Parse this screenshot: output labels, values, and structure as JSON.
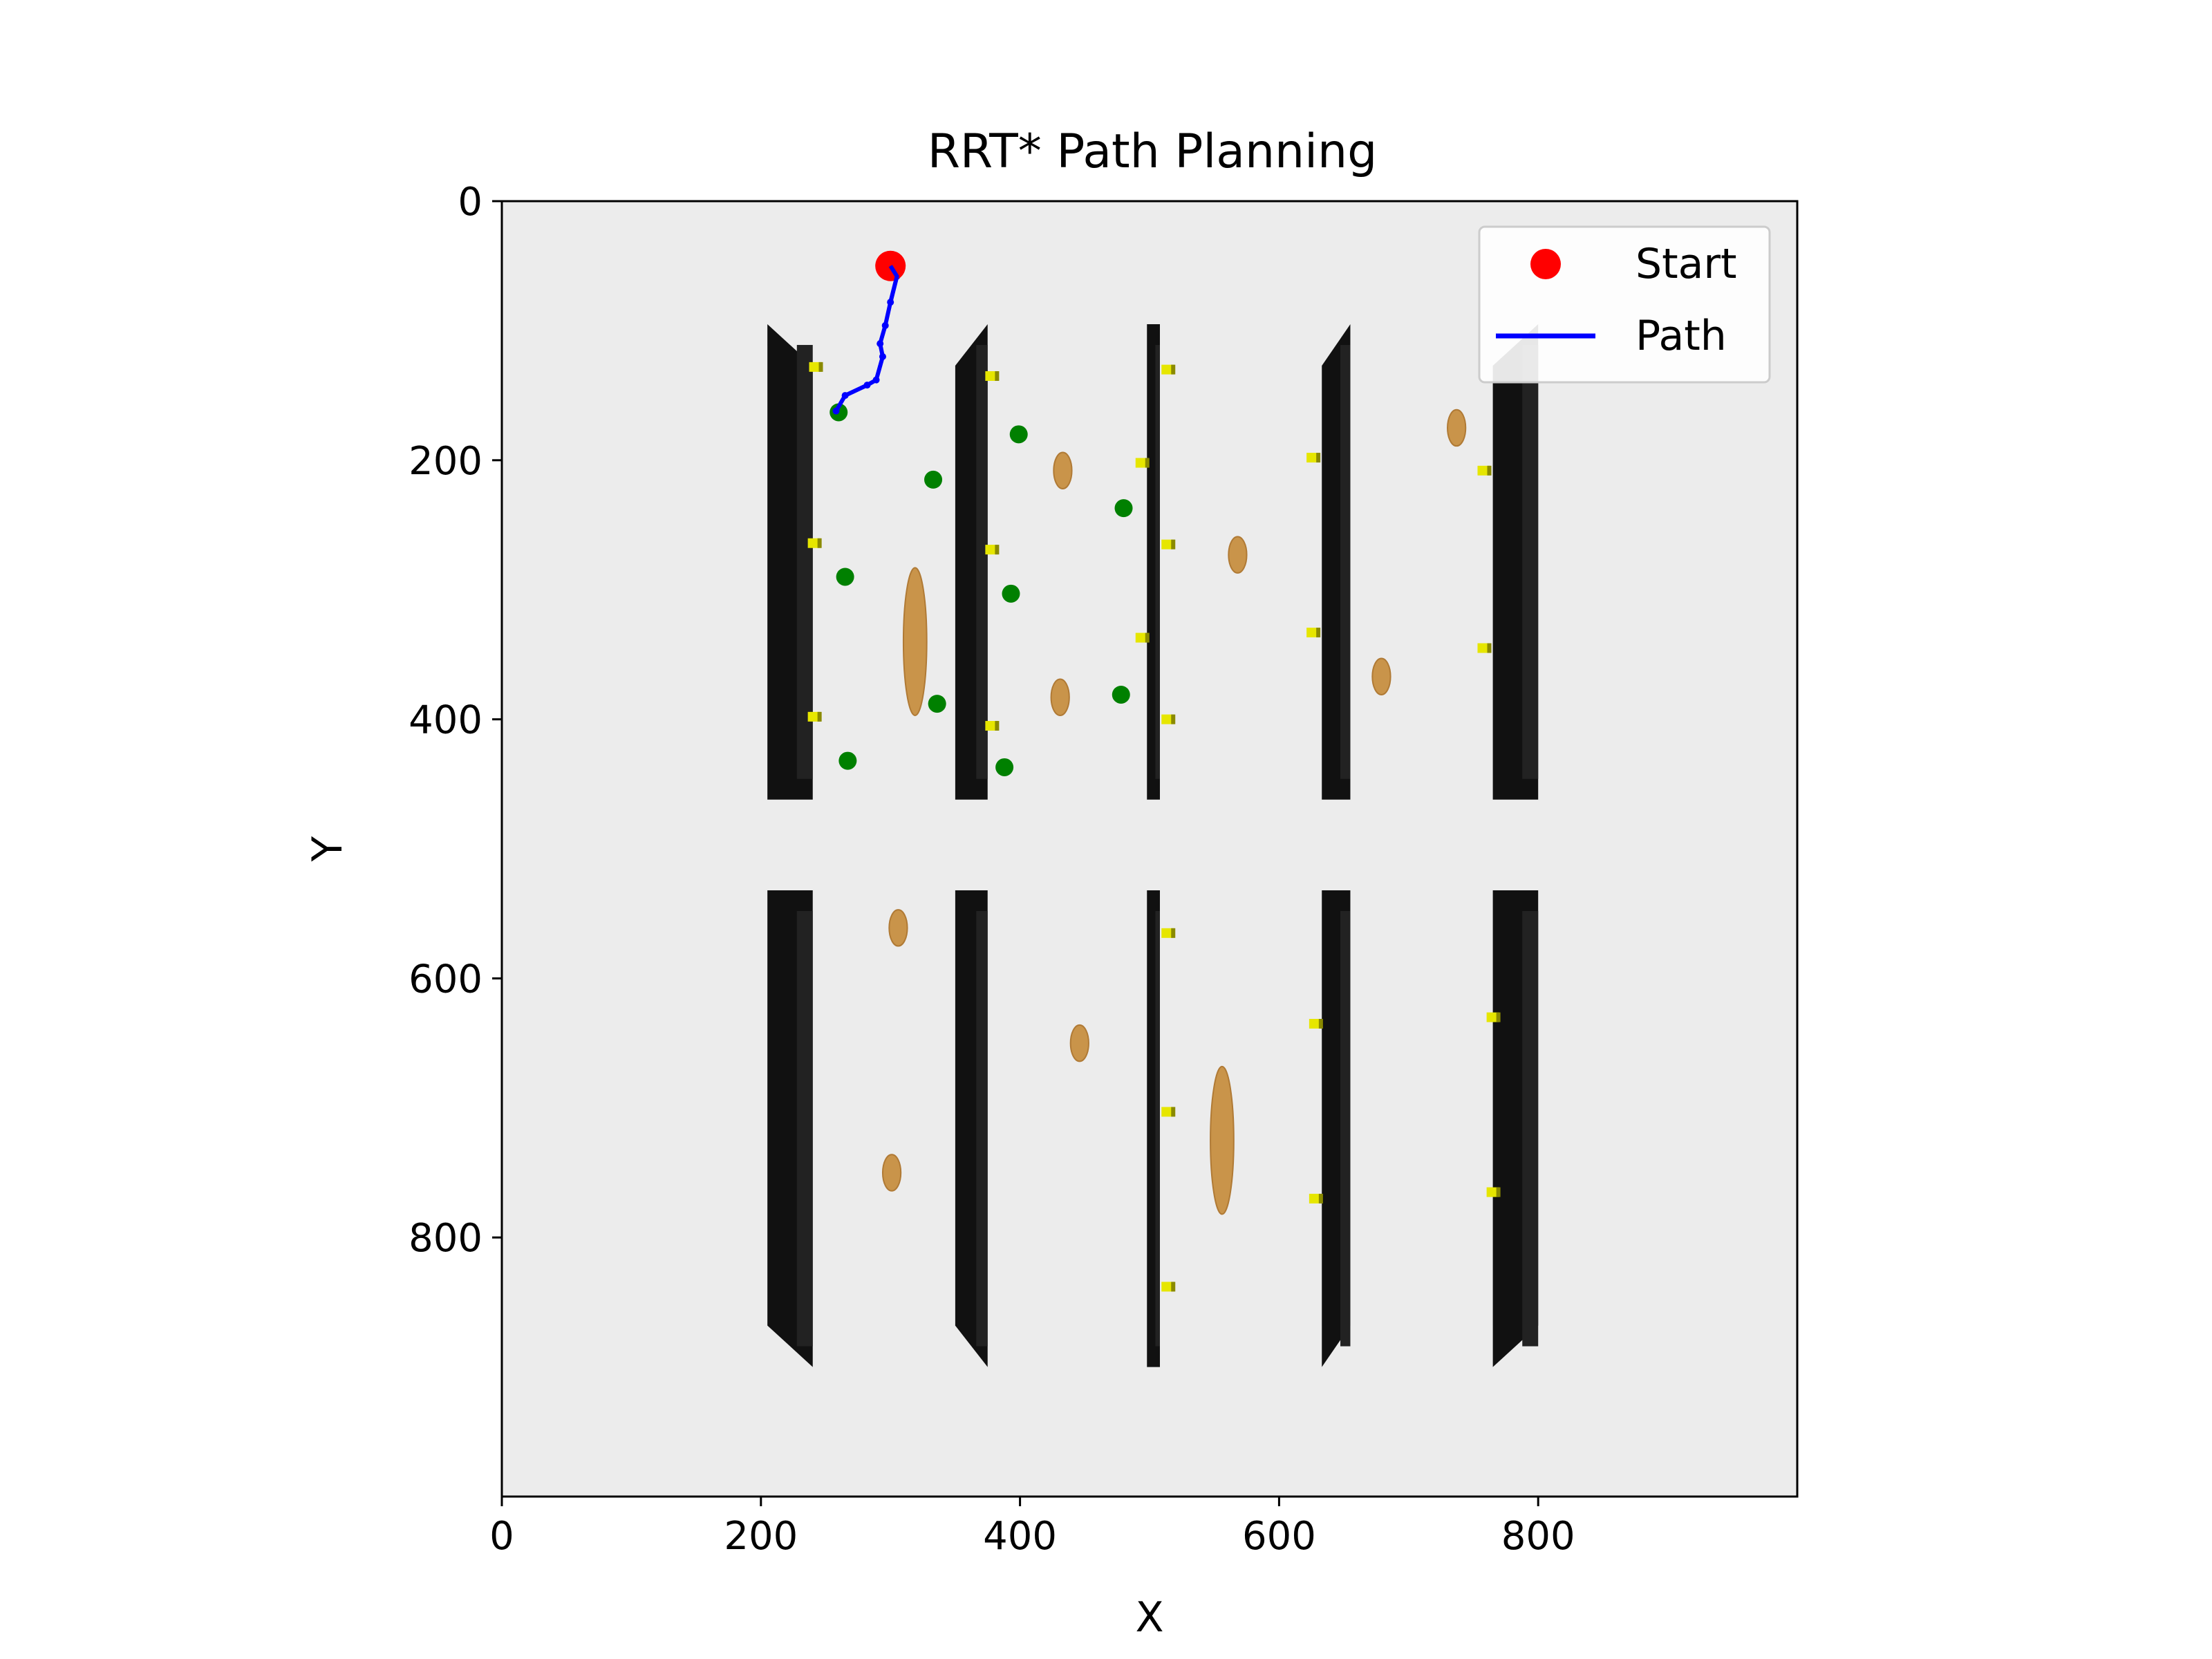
{
  "chart_data": {
    "type": "scatter",
    "title": "RRT* Path Planning",
    "xlabel": "X",
    "ylabel": "Y",
    "xlim": [
      0,
      1000
    ],
    "ylim": [
      1000,
      0
    ],
    "y_inverted": true,
    "xticks": [
      0,
      200,
      400,
      600,
      800
    ],
    "yticks": [
      0,
      200,
      400,
      600,
      800
    ],
    "xtick_labels": [
      "0",
      "200",
      "400",
      "600",
      "800"
    ],
    "ytick_labels": [
      "0",
      "200",
      "400",
      "600",
      "800"
    ],
    "grid": false,
    "legend_position": "top-right",
    "legend": [
      {
        "label": "Start",
        "marker": "circle",
        "color": "#ff0000"
      },
      {
        "label": "Path",
        "marker": "line",
        "color": "#0000ff"
      }
    ],
    "colors": {
      "background": "#ececec",
      "wall": "#111111",
      "start": "#ff0000",
      "path": "#0000ff",
      "nodes": "#008000",
      "obstacle": "#c9944a",
      "marker": "#e6e600"
    },
    "start": {
      "x": 300,
      "y": 50
    },
    "path": [
      [
        300,
        50
      ],
      [
        305,
        58
      ],
      [
        300,
        78
      ],
      [
        296,
        96
      ],
      [
        292,
        110
      ],
      [
        294,
        120
      ],
      [
        289,
        138
      ],
      [
        282,
        142
      ],
      [
        265,
        150
      ],
      [
        258,
        162
      ]
    ],
    "green_nodes": [
      [
        260,
        163
      ],
      [
        399,
        180
      ],
      [
        333,
        215
      ],
      [
        480,
        237
      ],
      [
        265,
        290
      ],
      [
        393,
        303
      ],
      [
        336,
        388
      ],
      [
        478,
        381
      ],
      [
        267,
        432
      ],
      [
        388,
        437
      ]
    ],
    "walls": [
      {
        "x0": 205,
        "x1": 240,
        "y0": 95,
        "y1": 462,
        "cap_top": "left",
        "cap_bottom": "none"
      },
      {
        "x0": 350,
        "x1": 375,
        "y0": 95,
        "y1": 462,
        "cap_top": "right",
        "cap_bottom": "none"
      },
      {
        "x0": 498,
        "x1": 508,
        "y0": 95,
        "y1": 462,
        "cap_top": "none",
        "cap_bottom": "none"
      },
      {
        "x0": 633,
        "x1": 655,
        "y0": 95,
        "y1": 462,
        "cap_top": "right",
        "cap_bottom": "none"
      },
      {
        "x0": 765,
        "x1": 800,
        "y0": 95,
        "y1": 462,
        "cap_top": "right",
        "cap_bottom": "none"
      },
      {
        "x0": 205,
        "x1": 240,
        "y0": 532,
        "y1": 900,
        "cap_top": "none",
        "cap_bottom": "right"
      },
      {
        "x0": 350,
        "x1": 375,
        "y0": 532,
        "y1": 900,
        "cap_top": "none",
        "cap_bottom": "right"
      },
      {
        "x0": 498,
        "x1": 508,
        "y0": 532,
        "y1": 900,
        "cap_top": "none",
        "cap_bottom": "none"
      },
      {
        "x0": 633,
        "x1": 655,
        "y0": 532,
        "y1": 900,
        "cap_top": "none",
        "cap_bottom": "left"
      },
      {
        "x0": 765,
        "x1": 800,
        "y0": 532,
        "y1": 900,
        "cap_top": "none",
        "cap_bottom": "left"
      }
    ],
    "obstacles": [
      {
        "cx": 319,
        "cy": 340,
        "rx": 9,
        "ry": 57
      },
      {
        "cx": 433,
        "cy": 208,
        "rx": 7,
        "ry": 14
      },
      {
        "cx": 431,
        "cy": 383,
        "rx": 7,
        "ry": 14
      },
      {
        "cx": 568,
        "cy": 273,
        "rx": 7,
        "ry": 14
      },
      {
        "cx": 679,
        "cy": 367,
        "rx": 7,
        "ry": 14
      },
      {
        "cx": 737,
        "cy": 175,
        "rx": 7,
        "ry": 14
      },
      {
        "cx": 306,
        "cy": 561,
        "rx": 7,
        "ry": 14
      },
      {
        "cx": 446,
        "cy": 650,
        "rx": 7,
        "ry": 14
      },
      {
        "cx": 301,
        "cy": 750,
        "rx": 7,
        "ry": 14
      },
      {
        "cx": 556,
        "cy": 725,
        "rx": 9,
        "ry": 57
      }
    ],
    "markers": [
      [
        242,
        128
      ],
      [
        378,
        135
      ],
      [
        241,
        264
      ],
      [
        378,
        269
      ],
      [
        241,
        398
      ],
      [
        378,
        405
      ],
      [
        514,
        130
      ],
      [
        494,
        202
      ],
      [
        514,
        265
      ],
      [
        494,
        337
      ],
      [
        514,
        400
      ],
      [
        626,
        198
      ],
      [
        626,
        333
      ],
      [
        758,
        208
      ],
      [
        758,
        345
      ],
      [
        514,
        565
      ],
      [
        514,
        703
      ],
      [
        514,
        838
      ],
      [
        628,
        635
      ],
      [
        628,
        770
      ],
      [
        765,
        630
      ],
      [
        765,
        765
      ]
    ]
  }
}
